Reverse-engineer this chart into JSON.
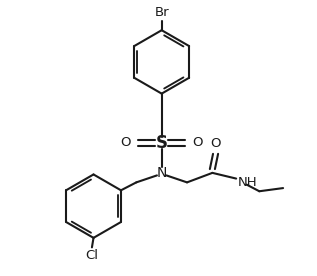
{
  "bg_color": "#ffffff",
  "line_color": "#1a1a1a",
  "line_width": 1.5,
  "figsize": [
    3.17,
    2.76
  ],
  "dpi": 100,
  "xlim": [
    0,
    10
  ],
  "ylim": [
    0,
    8.7
  ]
}
